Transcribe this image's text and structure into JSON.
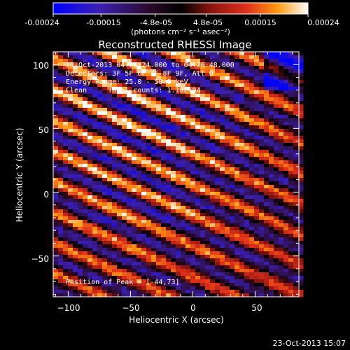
{
  "colorbar": {
    "ticks": [
      "-0.00024",
      "-0.00015",
      "-4.8e-05",
      "4.8e-05",
      "0.00015",
      "0.00024"
    ],
    "tick_values": [
      -0.00024,
      -0.00015,
      -4.8e-05,
      4.8e-05,
      0.00015,
      0.00024
    ],
    "range": [
      -0.00024,
      0.00024
    ],
    "units": "(photons cm⁻² s⁻¹ asec⁻²)"
  },
  "info": {
    "time": "23-Oct-2013 04:22:24.000 to 04:26:48.000",
    "detectors": "Detectors: 3F 5F 6F 7F 8F 9F, Att 0",
    "energy": "Energy Range: 25.0 - 50.0 keV",
    "clean": "Clean     Total counts: 1.18E+04",
    "peak": "Position of Peak = [-44,73]"
  },
  "footer_timestamp": "23-Oct-2013 15:07",
  "colors": {
    "background": "#000000",
    "text": "#ffffff",
    "colormap": [
      "#0000ff",
      "#4b1ea8",
      "#3a0b40",
      "#000000",
      "#7a1010",
      "#d9261a",
      "#ff6a00",
      "#ffc21a",
      "#ffffff"
    ]
  },
  "chart_data": {
    "type": "heatmap",
    "title": "Reconstructed RHESSI Image",
    "xlabel": "Heliocentric X (arcsec)",
    "ylabel": "Heliocentric Y (arcsec)",
    "xlim": [
      -112,
      85
    ],
    "ylim": [
      -82,
      110
    ],
    "xticks": [
      -100,
      -50,
      0,
      50
    ],
    "yticks": [
      -50,
      0,
      50,
      100
    ],
    "xtick_labels": [
      "−100",
      "−50",
      "0",
      "50"
    ],
    "ytick_labels": [
      "−50",
      "0",
      "50",
      "100"
    ],
    "colormap": "red-temperature with blue negatives",
    "peak_position": [
      -44,
      73
    ],
    "value_range": [
      -0.00024,
      0.00024
    ],
    "pattern": "diagonal bright stripes running from upper-left to lower-right, brightest near top center"
  }
}
